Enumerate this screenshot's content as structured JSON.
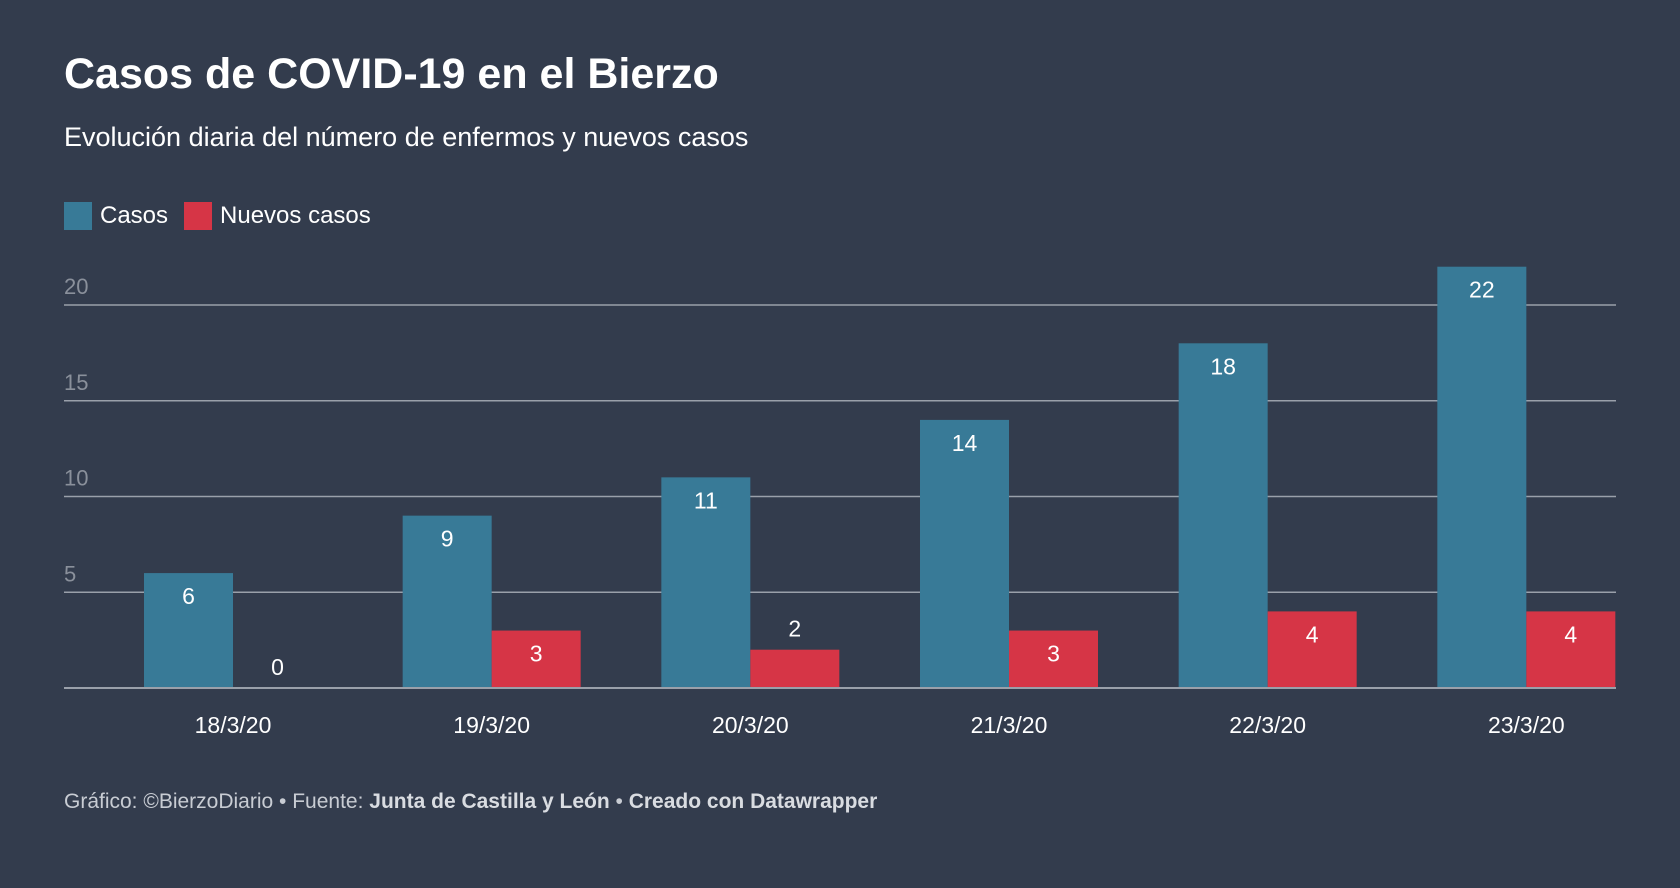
{
  "chart_data": {
    "type": "bar",
    "title": "Casos de COVID-19 en el Bierzo",
    "subtitle": "Evolución diaria del número de enfermos y nuevos casos",
    "categories": [
      "18/3/20",
      "19/3/20",
      "20/3/20",
      "21/3/20",
      "22/3/20",
      "23/3/20"
    ],
    "series": [
      {
        "name": "Casos",
        "values": [
          6,
          9,
          11,
          14,
          18,
          22
        ]
      },
      {
        "name": "Nuevos casos",
        "values": [
          0,
          3,
          2,
          3,
          4,
          4
        ]
      }
    ],
    "y_ticks": [
      5,
      10,
      15,
      20
    ],
    "ylim": [
      0,
      22
    ],
    "grid": true,
    "legend_position": "top-left",
    "colors": {
      "Casos": "#387a97",
      "Nuevos casos": "#d63546",
      "background": "#333c4d",
      "gridline": "#9aa0aa",
      "tick_label": "#8a909b"
    }
  },
  "footer": {
    "prefix": "Gráfico: ©BierzoDiario • Fuente: ",
    "source": "Junta de Castilla y León",
    "separator": " • ",
    "credit": "Creado con Datawrapper"
  }
}
